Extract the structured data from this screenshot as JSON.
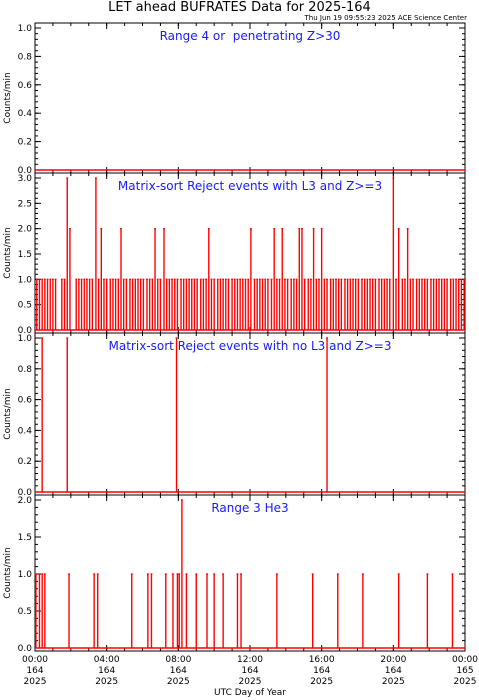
{
  "title": "LET ahead BUFRATES Data for 2025-164",
  "timestamp": "Thu Jun 19 09:55:23 2025 ACE Science Center",
  "chart_data": {
    "type": "line",
    "xlabel": "UTC Day of Year",
    "xlim": [
      0,
      24
    ],
    "x_ticks": [
      {
        "time": "00:00",
        "doy": "164",
        "year": "2025"
      },
      {
        "time": "04:00",
        "doy": "164",
        "year": "2025"
      },
      {
        "time": "08:00",
        "doy": "164",
        "year": "2025"
      },
      {
        "time": "12:00",
        "doy": "164",
        "year": "2025"
      },
      {
        "time": "16:00",
        "doy": "164",
        "year": "2025"
      },
      {
        "time": "20:00",
        "doy": "164",
        "year": "2025"
      },
      {
        "time": "00:00",
        "doy": "165",
        "year": "2025"
      }
    ],
    "line_color": "#ff0000",
    "panels": [
      {
        "title": "Range 4 or  penetrating Z>30",
        "ylabel": "Counts/min",
        "ylim": [
          0,
          1.0
        ],
        "yticks": [
          "0.0",
          "0.2",
          "0.4",
          "0.6",
          "0.8",
          "1.0"
        ],
        "baseline_y": 0,
        "events": []
      },
      {
        "title": "Matrix-sort Reject events with L3 and Z>=3",
        "ylabel": "Counts/min",
        "ylim": [
          0,
          3.0
        ],
        "yticks": [
          "0.0",
          "0.5",
          "1.0",
          "1.5",
          "2.0",
          "2.5",
          "3.0"
        ],
        "baseline_y": 0,
        "events": [
          [
            0.1,
            1
          ],
          [
            0.25,
            1
          ],
          [
            0.4,
            1
          ],
          [
            0.55,
            1
          ],
          [
            0.7,
            1
          ],
          [
            0.85,
            1
          ],
          [
            1.0,
            1
          ],
          [
            1.15,
            1
          ],
          [
            1.5,
            1
          ],
          [
            1.65,
            1
          ],
          [
            1.8,
            3
          ],
          [
            1.95,
            2
          ],
          [
            2.3,
            1
          ],
          [
            2.45,
            1
          ],
          [
            2.6,
            1
          ],
          [
            2.75,
            1
          ],
          [
            2.9,
            1
          ],
          [
            3.05,
            1
          ],
          [
            3.2,
            1
          ],
          [
            3.4,
            3
          ],
          [
            3.55,
            1
          ],
          [
            3.7,
            2
          ],
          [
            3.85,
            1
          ],
          [
            4.0,
            1
          ],
          [
            4.2,
            1
          ],
          [
            4.35,
            1
          ],
          [
            4.5,
            1
          ],
          [
            4.65,
            1
          ],
          [
            4.8,
            2
          ],
          [
            4.95,
            1
          ],
          [
            5.1,
            1
          ],
          [
            5.3,
            1
          ],
          [
            5.45,
            1
          ],
          [
            5.6,
            1
          ],
          [
            5.75,
            1
          ],
          [
            5.9,
            1
          ],
          [
            6.05,
            1
          ],
          [
            6.25,
            1
          ],
          [
            6.4,
            1
          ],
          [
            6.55,
            1
          ],
          [
            6.7,
            2
          ],
          [
            6.85,
            1
          ],
          [
            7.0,
            1
          ],
          [
            7.2,
            2
          ],
          [
            7.35,
            1
          ],
          [
            7.5,
            1
          ],
          [
            7.65,
            1
          ],
          [
            7.8,
            1
          ],
          [
            7.95,
            1
          ],
          [
            8.15,
            1
          ],
          [
            8.3,
            1
          ],
          [
            8.45,
            1
          ],
          [
            8.6,
            1
          ],
          [
            8.75,
            1
          ],
          [
            8.9,
            1
          ],
          [
            9.05,
            1
          ],
          [
            9.25,
            1
          ],
          [
            9.4,
            1
          ],
          [
            9.55,
            1
          ],
          [
            9.7,
            2
          ],
          [
            9.85,
            1
          ],
          [
            10.0,
            1
          ],
          [
            10.2,
            1
          ],
          [
            10.35,
            1
          ],
          [
            10.5,
            1
          ],
          [
            10.65,
            1
          ],
          [
            10.8,
            1
          ],
          [
            11.0,
            1
          ],
          [
            11.15,
            1
          ],
          [
            11.3,
            1
          ],
          [
            11.45,
            1
          ],
          [
            11.6,
            1
          ],
          [
            11.75,
            1
          ],
          [
            11.9,
            1
          ],
          [
            12.05,
            2
          ],
          [
            12.25,
            1
          ],
          [
            12.4,
            1
          ],
          [
            12.55,
            1
          ],
          [
            12.7,
            1
          ],
          [
            12.85,
            1
          ],
          [
            13.0,
            1
          ],
          [
            13.2,
            1
          ],
          [
            13.35,
            2
          ],
          [
            13.5,
            1
          ],
          [
            13.65,
            1
          ],
          [
            13.8,
            2
          ],
          [
            13.95,
            1
          ],
          [
            14.1,
            1
          ],
          [
            14.3,
            1
          ],
          [
            14.45,
            1
          ],
          [
            14.6,
            1
          ],
          [
            14.75,
            2
          ],
          [
            14.9,
            2
          ],
          [
            15.05,
            1
          ],
          [
            15.25,
            1
          ],
          [
            15.4,
            1
          ],
          [
            15.55,
            2
          ],
          [
            15.7,
            1
          ],
          [
            15.85,
            1
          ],
          [
            16.0,
            2
          ],
          [
            16.15,
            1
          ],
          [
            16.3,
            1
          ],
          [
            16.5,
            1
          ],
          [
            16.65,
            1
          ],
          [
            16.8,
            1
          ],
          [
            16.95,
            1
          ],
          [
            17.1,
            1
          ],
          [
            17.3,
            1
          ],
          [
            17.45,
            1
          ],
          [
            17.6,
            1
          ],
          [
            17.75,
            1
          ],
          [
            17.9,
            1
          ],
          [
            18.05,
            1
          ],
          [
            18.25,
            1
          ],
          [
            18.4,
            1
          ],
          [
            18.55,
            1
          ],
          [
            18.7,
            1
          ],
          [
            18.85,
            1
          ],
          [
            19.0,
            1
          ],
          [
            19.2,
            1
          ],
          [
            19.35,
            1
          ],
          [
            19.5,
            1
          ],
          [
            19.65,
            1
          ],
          [
            19.8,
            1
          ],
          [
            20.0,
            3
          ],
          [
            20.15,
            1
          ],
          [
            20.3,
            2
          ],
          [
            20.5,
            1
          ],
          [
            20.65,
            1
          ],
          [
            20.8,
            2
          ],
          [
            20.95,
            1
          ],
          [
            21.1,
            1
          ],
          [
            21.3,
            1
          ],
          [
            21.45,
            1
          ],
          [
            21.6,
            1
          ],
          [
            21.75,
            1
          ],
          [
            21.9,
            1
          ],
          [
            22.1,
            1
          ],
          [
            22.25,
            1
          ],
          [
            22.4,
            1
          ],
          [
            22.55,
            1
          ],
          [
            22.7,
            1
          ],
          [
            22.85,
            1
          ],
          [
            23.0,
            1
          ],
          [
            23.2,
            1
          ],
          [
            23.35,
            1
          ],
          [
            23.5,
            1
          ],
          [
            23.65,
            1
          ],
          [
            23.8,
            1
          ],
          [
            23.95,
            1
          ]
        ]
      },
      {
        "title": "Matrix-sort Reject events with no L3 and Z>=3",
        "ylabel": "Counts/min",
        "ylim": [
          0,
          1.0
        ],
        "yticks": [
          "0.0",
          "0.2",
          "0.4",
          "0.6",
          "0.8",
          "1.0"
        ],
        "baseline_y": 0,
        "events": [
          [
            0.4,
            1
          ],
          [
            1.8,
            1
          ],
          [
            7.9,
            1
          ],
          [
            16.3,
            1
          ]
        ]
      },
      {
        "title": "Range 3 He3",
        "ylabel": "Counts/min",
        "ylim": [
          0,
          2.0
        ],
        "yticks": [
          "0.0",
          "0.5",
          "1.0",
          "1.5",
          "2.0"
        ],
        "baseline_y": 0,
        "events": [
          [
            0.05,
            1
          ],
          [
            0.25,
            1
          ],
          [
            0.4,
            1
          ],
          [
            0.55,
            1
          ],
          [
            1.9,
            1
          ],
          [
            3.3,
            1
          ],
          [
            3.5,
            1
          ],
          [
            5.4,
            1
          ],
          [
            6.3,
            1
          ],
          [
            6.5,
            1
          ],
          [
            7.3,
            1
          ],
          [
            7.7,
            1
          ],
          [
            7.95,
            1
          ],
          [
            8.05,
            1
          ],
          [
            8.2,
            2
          ],
          [
            8.45,
            1
          ],
          [
            9.0,
            1
          ],
          [
            9.6,
            1
          ],
          [
            10.0,
            1
          ],
          [
            10.5,
            1
          ],
          [
            11.3,
            1
          ],
          [
            11.5,
            1
          ],
          [
            13.5,
            1
          ],
          [
            15.5,
            1
          ],
          [
            16.9,
            1
          ],
          [
            18.3,
            1
          ],
          [
            20.3,
            1
          ],
          [
            21.9,
            1
          ],
          [
            23.3,
            1
          ]
        ]
      }
    ]
  }
}
